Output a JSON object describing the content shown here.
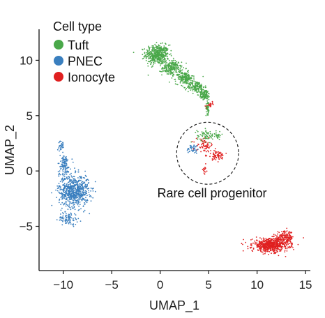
{
  "chart_data": {
    "type": "scatter",
    "xlabel": "UMAP_1",
    "ylabel": "UMAP_2",
    "xlim": [
      -12.5,
      15.5
    ],
    "ylim": [
      -9.0,
      12.8
    ],
    "xticks": [
      -10,
      -5,
      0,
      5,
      10,
      15
    ],
    "yticks": [
      -5,
      0,
      5,
      10
    ],
    "grid": false,
    "legend": {
      "title": "Cell type",
      "placement": "top-left",
      "entries": [
        {
          "name": "Tuft",
          "color": "#4aa84a"
        },
        {
          "name": "PNEC",
          "color": "#3a7fbf"
        },
        {
          "name": "Ionocyte",
          "color": "#e02020"
        }
      ]
    },
    "annotation": {
      "text": "Rare cell progenitor",
      "circle_center": [
        4.9,
        1.6
      ],
      "circle_radius": 3.2
    },
    "series": [
      {
        "name": "Tuft",
        "color": "#4aa84a",
        "clusters": [
          {
            "center": [
              -0.3,
              10.5
            ],
            "spread": [
              1.1,
              0.8
            ],
            "n": 480
          },
          {
            "center": [
              1.2,
              9.3
            ],
            "spread": [
              0.9,
              0.6
            ],
            "n": 220
          },
          {
            "center": [
              2.5,
              8.4
            ],
            "spread": [
              0.8,
              0.5
            ],
            "n": 180
          },
          {
            "center": [
              3.7,
              7.6
            ],
            "spread": [
              0.8,
              0.5
            ],
            "n": 160
          },
          {
            "center": [
              4.6,
              6.9
            ],
            "spread": [
              0.5,
              0.4
            ],
            "n": 110
          },
          {
            "center": [
              4.9,
              5.8
            ],
            "spread": [
              0.15,
              0.6
            ],
            "n": 60
          },
          {
            "center": [
              4.8,
              3.2
            ],
            "spread": [
              0.9,
              0.5
            ],
            "n": 70
          },
          {
            "center": [
              6.0,
              3.2
            ],
            "spread": [
              0.25,
              0.25
            ],
            "n": 20
          }
        ]
      },
      {
        "name": "PNEC",
        "color": "#3a7fbf",
        "clusters": [
          {
            "center": [
              -8.9,
              -1.8
            ],
            "spread": [
              1.4,
              1.3
            ],
            "n": 700
          },
          {
            "center": [
              -9.9,
              0.5
            ],
            "spread": [
              0.6,
              0.9
            ],
            "n": 120
          },
          {
            "center": [
              -10.2,
              2.3
            ],
            "spread": [
              0.25,
              0.4
            ],
            "n": 30
          },
          {
            "center": [
              -9.5,
              -4.3
            ],
            "spread": [
              0.9,
              0.5
            ],
            "n": 90
          },
          {
            "center": [
              3.4,
              2.0
            ],
            "spread": [
              0.6,
              0.4
            ],
            "n": 45
          }
        ]
      },
      {
        "name": "Ionocyte",
        "color": "#e02020",
        "clusters": [
          {
            "center": [
              11.4,
              -6.7
            ],
            "spread": [
              1.7,
              0.55
            ],
            "n": 650
          },
          {
            "center": [
              12.9,
              -6.0
            ],
            "spread": [
              0.8,
              0.5
            ],
            "n": 140
          },
          {
            "center": [
              4.6,
              2.3
            ],
            "spread": [
              0.8,
              0.5
            ],
            "n": 60
          },
          {
            "center": [
              5.8,
              1.4
            ],
            "spread": [
              0.8,
              0.4
            ],
            "n": 70
          },
          {
            "center": [
              4.6,
              0.1
            ],
            "spread": [
              0.15,
              0.4
            ],
            "n": 15
          },
          {
            "center": [
              5.2,
              6.0
            ],
            "spread": [
              0.3,
              0.25
            ],
            "n": 20
          }
        ]
      }
    ]
  }
}
